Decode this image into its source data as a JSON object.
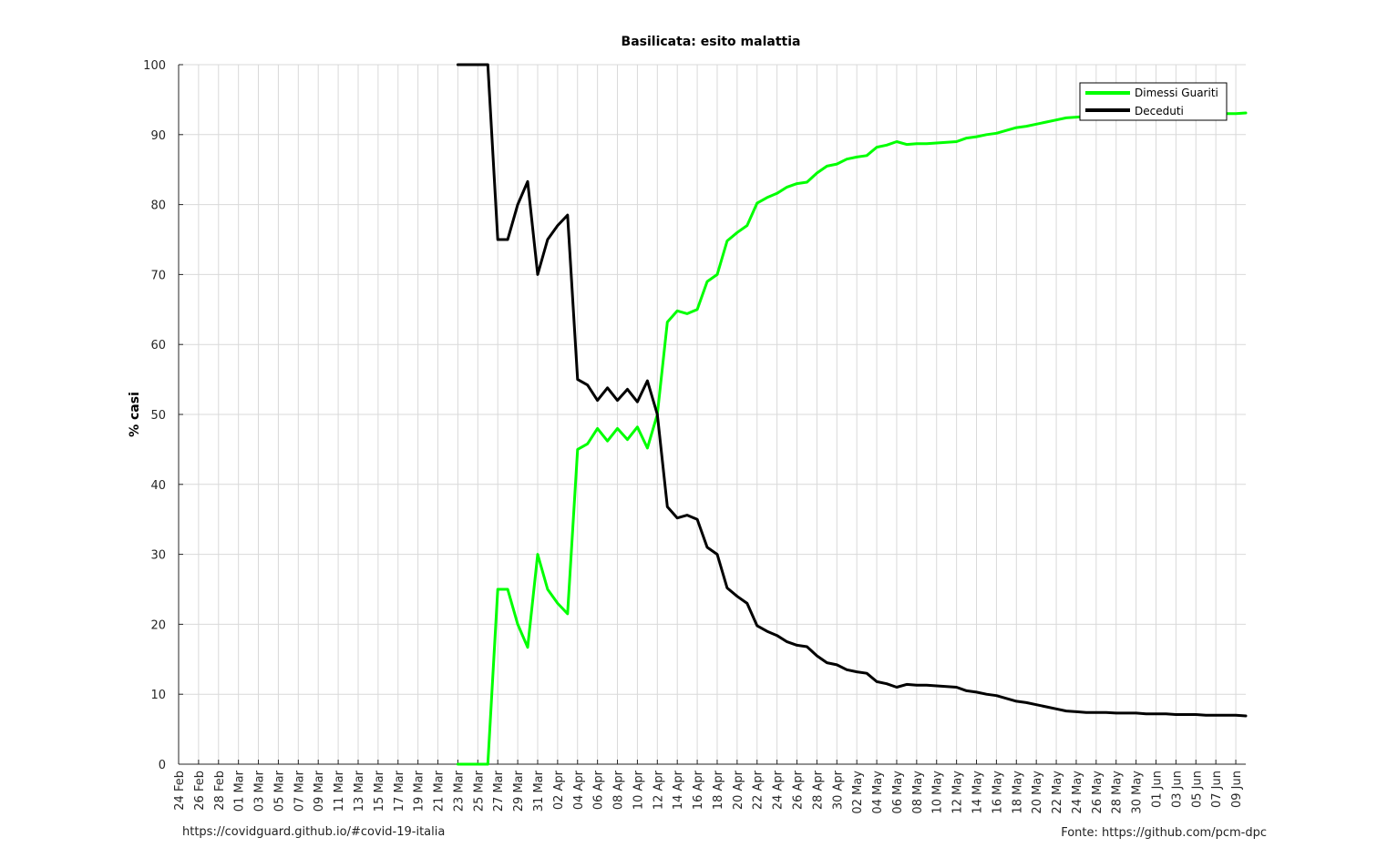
{
  "chart_data": {
    "type": "line",
    "title": "Basilicata: esito malattia",
    "ylabel": "% casi",
    "xlabel": "",
    "ylim": [
      0,
      100
    ],
    "yticks": [
      0,
      10,
      20,
      30,
      40,
      50,
      60,
      70,
      80,
      90,
      100
    ],
    "grid": true,
    "legend_position": "top-right",
    "x_start_date": "2020-02-24",
    "x_end_date": "2020-06-10",
    "x_tick_labels": [
      "24 Feb",
      "26 Feb",
      "28 Feb",
      "01 Mar",
      "03 Mar",
      "05 Mar",
      "07 Mar",
      "09 Mar",
      "11 Mar",
      "13 Mar",
      "15 Mar",
      "17 Mar",
      "19 Mar",
      "21 Mar",
      "23 Mar",
      "25 Mar",
      "27 Mar",
      "29 Mar",
      "31 Mar",
      "02 Apr",
      "04 Apr",
      "06 Apr",
      "08 Apr",
      "10 Apr",
      "12 Apr",
      "14 Apr",
      "16 Apr",
      "18 Apr",
      "20 Apr",
      "22 Apr",
      "24 Apr",
      "26 Apr",
      "28 Apr",
      "30 Apr",
      "02 May",
      "04 May",
      "06 May",
      "08 May",
      "10 May",
      "12 May",
      "14 May",
      "16 May",
      "18 May",
      "20 May",
      "22 May",
      "24 May",
      "26 May",
      "28 May",
      "30 May",
      "01 Jun",
      "03 Jun",
      "05 Jun",
      "07 Jun",
      "09 Jun"
    ],
    "series": [
      {
        "name": "Dimessi Guariti",
        "color": "#00ff00",
        "points": [
          [
            "2020-03-23",
            0
          ],
          [
            "2020-03-24",
            0
          ],
          [
            "2020-03-25",
            0
          ],
          [
            "2020-03-26",
            0
          ],
          [
            "2020-03-27",
            25
          ],
          [
            "2020-03-28",
            25
          ],
          [
            "2020-03-29",
            20
          ],
          [
            "2020-03-30",
            16.7
          ],
          [
            "2020-03-31",
            30
          ],
          [
            "2020-04-01",
            25
          ],
          [
            "2020-04-02",
            23
          ],
          [
            "2020-04-03",
            21.5
          ],
          [
            "2020-04-04",
            45
          ],
          [
            "2020-04-05",
            45.8
          ],
          [
            "2020-04-06",
            48
          ],
          [
            "2020-04-07",
            46.2
          ],
          [
            "2020-04-08",
            48
          ],
          [
            "2020-04-09",
            46.4
          ],
          [
            "2020-04-10",
            48.2
          ],
          [
            "2020-04-11",
            45.2
          ],
          [
            "2020-04-12",
            50
          ],
          [
            "2020-04-13",
            63.2
          ],
          [
            "2020-04-14",
            64.8
          ],
          [
            "2020-04-15",
            64.4
          ],
          [
            "2020-04-16",
            65
          ],
          [
            "2020-04-17",
            69
          ],
          [
            "2020-04-18",
            70
          ],
          [
            "2020-04-19",
            74.8
          ],
          [
            "2020-04-20",
            76
          ],
          [
            "2020-04-21",
            77
          ],
          [
            "2020-04-22",
            80.2
          ],
          [
            "2020-04-23",
            81
          ],
          [
            "2020-04-24",
            81.6
          ],
          [
            "2020-04-25",
            82.5
          ],
          [
            "2020-04-26",
            83
          ],
          [
            "2020-04-27",
            83.2
          ],
          [
            "2020-04-28",
            84.5
          ],
          [
            "2020-04-29",
            85.5
          ],
          [
            "2020-04-30",
            85.8
          ],
          [
            "2020-05-01",
            86.5
          ],
          [
            "2020-05-02",
            86.8
          ],
          [
            "2020-05-03",
            87
          ],
          [
            "2020-05-04",
            88.2
          ],
          [
            "2020-05-05",
            88.5
          ],
          [
            "2020-05-06",
            89
          ],
          [
            "2020-05-07",
            88.6
          ],
          [
            "2020-05-08",
            88.7
          ],
          [
            "2020-05-09",
            88.7
          ],
          [
            "2020-05-10",
            88.8
          ],
          [
            "2020-05-11",
            88.9
          ],
          [
            "2020-05-12",
            89
          ],
          [
            "2020-05-13",
            89.5
          ],
          [
            "2020-05-14",
            89.7
          ],
          [
            "2020-05-15",
            90
          ],
          [
            "2020-05-16",
            90.2
          ],
          [
            "2020-05-17",
            90.6
          ],
          [
            "2020-05-18",
            91
          ],
          [
            "2020-05-19",
            91.2
          ],
          [
            "2020-05-20",
            91.5
          ],
          [
            "2020-05-21",
            91.8
          ],
          [
            "2020-05-22",
            92.1
          ],
          [
            "2020-05-23",
            92.4
          ],
          [
            "2020-05-24",
            92.5
          ],
          [
            "2020-05-25",
            92.6
          ],
          [
            "2020-05-26",
            92.6
          ],
          [
            "2020-05-27",
            92.6
          ],
          [
            "2020-05-28",
            92.7
          ],
          [
            "2020-05-29",
            92.7
          ],
          [
            "2020-05-30",
            92.7
          ],
          [
            "2020-05-31",
            92.8
          ],
          [
            "2020-06-01",
            92.8
          ],
          [
            "2020-06-02",
            92.8
          ],
          [
            "2020-06-03",
            92.9
          ],
          [
            "2020-06-04",
            92.9
          ],
          [
            "2020-06-05",
            92.9
          ],
          [
            "2020-06-06",
            93
          ],
          [
            "2020-06-07",
            93
          ],
          [
            "2020-06-08",
            93
          ],
          [
            "2020-06-09",
            93
          ],
          [
            "2020-06-10",
            93.1
          ]
        ]
      },
      {
        "name": "Deceduti",
        "color": "#000000",
        "points": [
          [
            "2020-03-23",
            100
          ],
          [
            "2020-03-24",
            100
          ],
          [
            "2020-03-25",
            100
          ],
          [
            "2020-03-26",
            100
          ],
          [
            "2020-03-27",
            75
          ],
          [
            "2020-03-28",
            75
          ],
          [
            "2020-03-29",
            80
          ],
          [
            "2020-03-30",
            83.3
          ],
          [
            "2020-03-31",
            70
          ],
          [
            "2020-04-01",
            75
          ],
          [
            "2020-04-02",
            77
          ],
          [
            "2020-04-03",
            78.5
          ],
          [
            "2020-04-04",
            55
          ],
          [
            "2020-04-05",
            54.2
          ],
          [
            "2020-04-06",
            52
          ],
          [
            "2020-04-07",
            53.8
          ],
          [
            "2020-04-08",
            52
          ],
          [
            "2020-04-09",
            53.6
          ],
          [
            "2020-04-10",
            51.8
          ],
          [
            "2020-04-11",
            54.8
          ],
          [
            "2020-04-12",
            50
          ],
          [
            "2020-04-13",
            36.8
          ],
          [
            "2020-04-14",
            35.2
          ],
          [
            "2020-04-15",
            35.6
          ],
          [
            "2020-04-16",
            35
          ],
          [
            "2020-04-17",
            31
          ],
          [
            "2020-04-18",
            30
          ],
          [
            "2020-04-19",
            25.2
          ],
          [
            "2020-04-20",
            24
          ],
          [
            "2020-04-21",
            23
          ],
          [
            "2020-04-22",
            19.8
          ],
          [
            "2020-04-23",
            19
          ],
          [
            "2020-04-24",
            18.4
          ],
          [
            "2020-04-25",
            17.5
          ],
          [
            "2020-04-26",
            17
          ],
          [
            "2020-04-27",
            16.8
          ],
          [
            "2020-04-28",
            15.5
          ],
          [
            "2020-04-29",
            14.5
          ],
          [
            "2020-04-30",
            14.2
          ],
          [
            "2020-05-01",
            13.5
          ],
          [
            "2020-05-02",
            13.2
          ],
          [
            "2020-05-03",
            13
          ],
          [
            "2020-05-04",
            11.8
          ],
          [
            "2020-05-05",
            11.5
          ],
          [
            "2020-05-06",
            11
          ],
          [
            "2020-05-07",
            11.4
          ],
          [
            "2020-05-08",
            11.3
          ],
          [
            "2020-05-09",
            11.3
          ],
          [
            "2020-05-10",
            11.2
          ],
          [
            "2020-05-11",
            11.1
          ],
          [
            "2020-05-12",
            11
          ],
          [
            "2020-05-13",
            10.5
          ],
          [
            "2020-05-14",
            10.3
          ],
          [
            "2020-05-15",
            10
          ],
          [
            "2020-05-16",
            9.8
          ],
          [
            "2020-05-17",
            9.4
          ],
          [
            "2020-05-18",
            9
          ],
          [
            "2020-05-19",
            8.8
          ],
          [
            "2020-05-20",
            8.5
          ],
          [
            "2020-05-21",
            8.2
          ],
          [
            "2020-05-22",
            7.9
          ],
          [
            "2020-05-23",
            7.6
          ],
          [
            "2020-05-24",
            7.5
          ],
          [
            "2020-05-25",
            7.4
          ],
          [
            "2020-05-26",
            7.4
          ],
          [
            "2020-05-27",
            7.4
          ],
          [
            "2020-05-28",
            7.3
          ],
          [
            "2020-05-29",
            7.3
          ],
          [
            "2020-05-30",
            7.3
          ],
          [
            "2020-05-31",
            7.2
          ],
          [
            "2020-06-01",
            7.2
          ],
          [
            "2020-06-02",
            7.2
          ],
          [
            "2020-06-03",
            7.1
          ],
          [
            "2020-06-04",
            7.1
          ],
          [
            "2020-06-05",
            7.1
          ],
          [
            "2020-06-06",
            7
          ],
          [
            "2020-06-07",
            7
          ],
          [
            "2020-06-08",
            7
          ],
          [
            "2020-06-09",
            7
          ],
          [
            "2020-06-10",
            6.9
          ]
        ]
      }
    ]
  },
  "footer": {
    "left_text": "https://covidguard.github.io/#covid-19-italia",
    "right_text": "Fonte: https://github.com/pcm-dpc"
  }
}
